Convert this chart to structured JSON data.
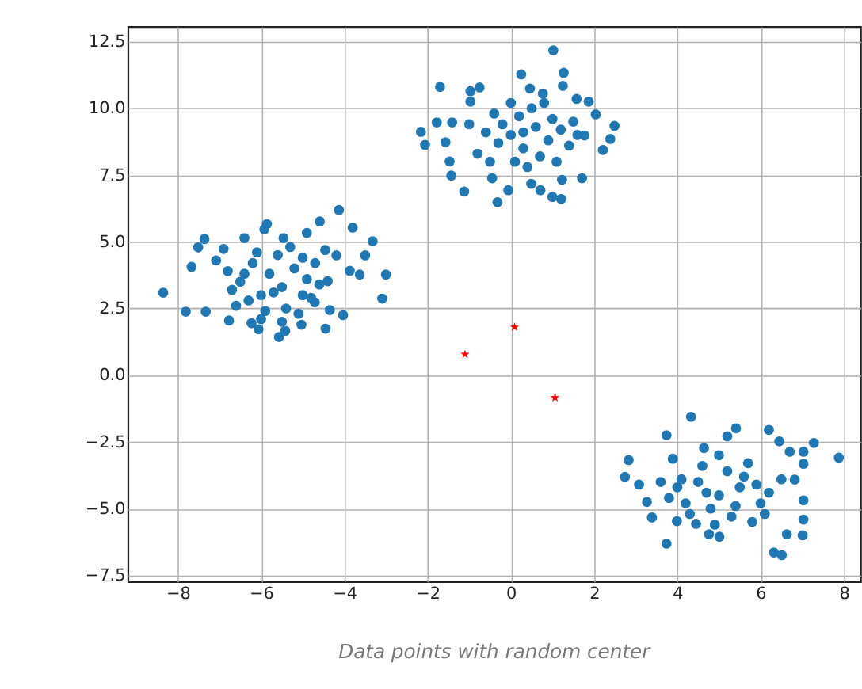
{
  "chart_data": {
    "type": "scatter",
    "annotations": [
      "Data points with random center"
    ],
    "xlim": [
      -9.2,
      8.4
    ],
    "ylim": [
      -7.73,
      13.06
    ],
    "xticks": [
      {
        "value": -8,
        "label": "−8"
      },
      {
        "value": -6,
        "label": "−6"
      },
      {
        "value": -4,
        "label": "−4"
      },
      {
        "value": -2,
        "label": "−2"
      },
      0,
      2,
      4,
      6,
      8
    ],
    "yticks": [
      {
        "value": -7.5,
        "label": "−7.5"
      },
      {
        "value": -5,
        "label": "−5.0"
      },
      {
        "value": -2.5,
        "label": "−2.5"
      },
      {
        "value": 0,
        "label": "0.0"
      },
      2.5,
      {
        "value": 5,
        "label": "5.0"
      },
      7.5,
      {
        "value": 10,
        "label": "10.0"
      },
      12.5
    ],
    "grid": true,
    "series": [
      {
        "marker": "circle",
        "color": "#1f77b4",
        "x": [
          -8.35,
          -7.81,
          -7.33,
          -7.67,
          -7.51,
          -7.36,
          -7.08,
          -6.9,
          -6.77,
          -6.4,
          -6.23,
          -6.06,
          -5.86,
          -5.92,
          -5.57,
          -5.42,
          -5.03,
          -5.46,
          -4.9,
          -4.59,
          -4.45,
          -4.35,
          -4.03,
          -4.13,
          -4.19,
          -3.8,
          -3.5,
          -3.32,
          -3.87,
          -3.63,
          -3.0,
          -3.09,
          -4.46,
          -4.4,
          -4.71,
          -6.5,
          -6.2,
          -6.0,
          -5.8,
          -5.5,
          -5.2,
          -5.0,
          -5.6,
          -6.3,
          -5.4,
          -4.9,
          -6.7,
          -6.1,
          -5.3,
          -4.7,
          -5.9,
          -6.6,
          -5.1,
          -4.8,
          -6.4,
          -5.7,
          -5.0,
          -6.8,
          -4.6,
          -5.5,
          -6.0,
          -1.7,
          -2.16,
          -2.06,
          -1.78,
          -1.41,
          -1.57,
          -1.47,
          -1.43,
          -1.12,
          -0.97,
          -0.75,
          -0.97,
          -0.32,
          -0.45,
          -0.06,
          0.25,
          0.46,
          0.49,
          0.71,
          1.0,
          1.21,
          1.23,
          1.02,
          1.27,
          1.25,
          1.71,
          1.58,
          1.87,
          2.04,
          2.21,
          2.39,
          2.49,
          1.77,
          0.77,
          0.0,
          0.3,
          0.6,
          0.9,
          1.2,
          0.2,
          0.5,
          -0.3,
          -0.6,
          -0.8,
          0.1,
          0.7,
          1.0,
          1.4,
          1.5,
          -0.2,
          0.4,
          0.8,
          -0.5,
          1.1,
          0.0,
          -1.0,
          1.6,
          0.3,
          -0.4,
          4.33,
          3.74,
          2.83,
          2.74,
          3.08,
          3.39,
          3.74,
          3.89,
          4.64,
          5.2,
          5.41,
          6.2,
          6.45,
          6.7,
          7.28,
          7.03,
          7.03,
          7.88,
          6.82,
          7.03,
          7.03,
          7.01,
          6.63,
          6.32,
          6.51,
          5.01,
          4.76,
          4.45,
          3.99,
          3.27,
          4.0,
          4.5,
          5.0,
          5.5,
          6.0,
          4.8,
          5.3,
          5.8,
          4.2,
          5.2,
          5.6,
          4.6,
          6.2,
          3.8,
          5.0,
          4.3,
          5.9,
          6.5,
          4.9,
          5.4,
          4.1,
          6.1,
          4.7,
          5.7,
          3.6
        ],
        "values": [
          3.09,
          2.38,
          2.38,
          4.06,
          4.79,
          5.1,
          4.3,
          4.73,
          2.05,
          5.14,
          1.95,
          1.72,
          5.66,
          5.47,
          1.43,
          1.66,
          1.89,
          5.14,
          5.33,
          5.76,
          1.74,
          2.44,
          2.25,
          6.19,
          4.49,
          5.53,
          4.49,
          5.02,
          3.91,
          3.77,
          3.77,
          2.87,
          4.69,
          3.52,
          2.73,
          3.5,
          4.2,
          3.0,
          3.8,
          3.3,
          4.0,
          3.0,
          4.5,
          2.8,
          2.5,
          3.6,
          3.2,
          4.6,
          4.8,
          4.2,
          2.4,
          2.6,
          2.3,
          2.9,
          3.8,
          3.1,
          4.4,
          3.9,
          3.4,
          2.0,
          2.1,
          10.8,
          9.12,
          8.63,
          9.47,
          9.47,
          8.73,
          8.01,
          7.48,
          6.88,
          10.64,
          10.78,
          10.25,
          6.48,
          7.38,
          6.93,
          11.27,
          10.74,
          7.17,
          6.93,
          6.68,
          6.6,
          7.32,
          12.17,
          11.33,
          10.84,
          7.38,
          10.35,
          10.25,
          9.77,
          8.44,
          8.85,
          9.34,
          8.98,
          10.55,
          9.0,
          8.5,
          9.3,
          8.8,
          9.2,
          9.7,
          10.0,
          8.7,
          9.1,
          8.3,
          8.0,
          8.2,
          9.6,
          8.6,
          9.5,
          9.4,
          7.8,
          10.2,
          8.0,
          8.0,
          10.2,
          9.4,
          9.0,
          9.1,
          9.8,
          -1.56,
          -2.25,
          -3.18,
          -3.81,
          -4.1,
          -5.33,
          -6.31,
          -3.13,
          -2.73,
          -2.29,
          -1.99,
          -2.05,
          -2.48,
          -2.87,
          -2.54,
          -2.87,
          -3.32,
          -3.09,
          -3.91,
          -4.69,
          -5.41,
          -6.0,
          -5.96,
          -6.64,
          -6.74,
          -6.05,
          -5.96,
          -5.57,
          -5.47,
          -4.75,
          -4.2,
          -4.0,
          -4.5,
          -4.2,
          -4.8,
          -5.0,
          -5.3,
          -5.5,
          -4.8,
          -3.6,
          -3.8,
          -3.4,
          -4.4,
          -4.6,
          -3.0,
          -5.2,
          -4.1,
          -3.9,
          -5.6,
          -4.9,
          -3.9,
          -5.2,
          -4.4,
          -3.3,
          -4.0
        ]
      },
      {
        "marker": "star",
        "color": "#ff0000",
        "x": [
          -1.1,
          0.09,
          1.06
        ],
        "values": [
          0.78,
          1.8,
          -0.84
        ]
      }
    ]
  }
}
